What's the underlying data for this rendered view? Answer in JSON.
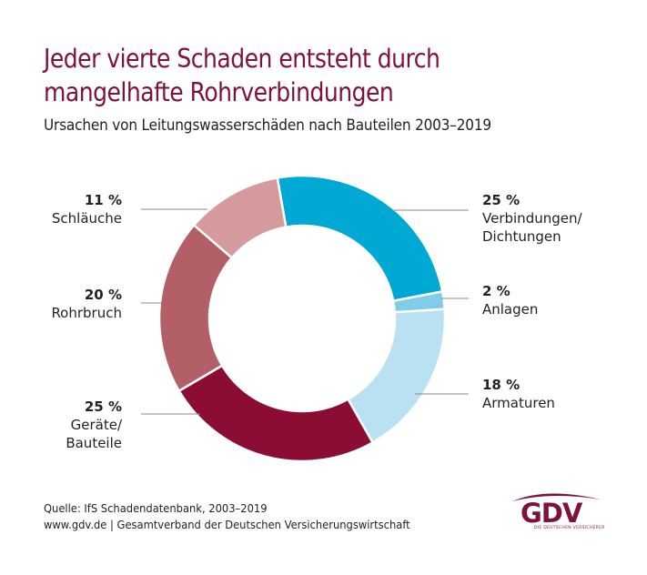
{
  "title_lines": [
    "Jeder vierte Schaden entsteht durch",
    "mangelhafte Rohrverbindungen"
  ],
  "subtitle": "Ursachen von Leitungswasserschäden nach Bauteilen 2003–2019",
  "colors": {
    "title": "#7f1239",
    "text": "#222222",
    "leader_line": "#888888"
  },
  "chart_data": {
    "type": "pie",
    "variant": "donut",
    "title": "Jeder vierte Schaden entsteht durch mangelhafte Rohrverbindungen",
    "subtitle": "Ursachen von Leitungswasserschäden nach Bauteilen 2003–2019",
    "unit": "%",
    "start_angle_deg": -10,
    "direction": "clockwise",
    "slices": [
      {
        "label": "Verbindungen/ Dichtungen",
        "label_lines": [
          "Verbindungen/",
          "Dichtungen"
        ],
        "value": 25,
        "display": "25 %",
        "color": "#00a9d4",
        "side": "right"
      },
      {
        "label": "Anlagen",
        "label_lines": [
          "Anlagen"
        ],
        "value": 2,
        "display": "2 %",
        "color": "#7fcde9",
        "side": "right"
      },
      {
        "label": "Armaturen",
        "label_lines": [
          "Armaturen"
        ],
        "value": 18,
        "display": "18 %",
        "color": "#b9e1f2",
        "side": "right"
      },
      {
        "label": "Geräte/ Bauteile",
        "label_lines": [
          "Geräte/",
          "Bauteile"
        ],
        "value": 25,
        "display": "25 %",
        "color": "#8c0d33",
        "side": "left"
      },
      {
        "label": "Rohrbruch",
        "label_lines": [
          "Rohrbruch"
        ],
        "value": 20,
        "display": "20 %",
        "color": "#b35f68",
        "side": "left"
      },
      {
        "label": "Schläuche",
        "label_lines": [
          "Schläuche"
        ],
        "value": 11,
        "display": "11 %",
        "color": "#d49a9e",
        "side": "left"
      }
    ]
  },
  "footer": {
    "source": "Quelle: IfS Schadendatenbank, 2003–2019",
    "website": "www.gdv.de | Gesamtverband der Deutschen Versicherungswirtschaft"
  },
  "logo": {
    "text": "GDV",
    "tagline": "DIE DEUTSCHEN VERSICHERER"
  }
}
